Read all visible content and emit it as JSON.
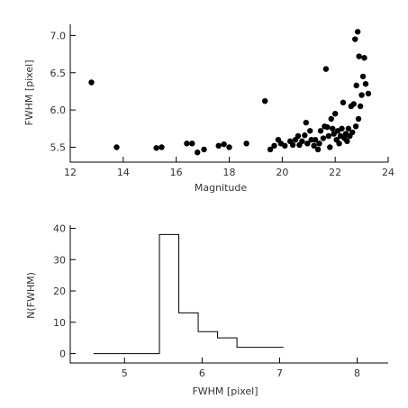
{
  "chart_data": [
    {
      "type": "scatter",
      "xlabel": "Magnitude",
      "ylabel": "FWHM [pixel]",
      "xlim": [
        12,
        24
      ],
      "ylim": [
        5.3,
        7.15
      ],
      "xticks": [
        "12",
        "14",
        "16",
        "18",
        "20",
        "22",
        "24"
      ],
      "yticks": [
        "5.5",
        "6.0",
        "6.5",
        "7.0"
      ],
      "grid": false,
      "points": [
        [
          12.8,
          6.37
        ],
        [
          13.75,
          5.5
        ],
        [
          15.25,
          5.49
        ],
        [
          15.45,
          5.5
        ],
        [
          16.4,
          5.55
        ],
        [
          16.6,
          5.55
        ],
        [
          16.8,
          5.43
        ],
        [
          17.05,
          5.47
        ],
        [
          17.6,
          5.52
        ],
        [
          17.8,
          5.54
        ],
        [
          18.0,
          5.5
        ],
        [
          18.65,
          5.55
        ],
        [
          19.35,
          6.12
        ],
        [
          19.55,
          5.47
        ],
        [
          19.7,
          5.52
        ],
        [
          19.85,
          5.6
        ],
        [
          19.95,
          5.55
        ],
        [
          20.1,
          5.52
        ],
        [
          20.3,
          5.58
        ],
        [
          20.4,
          5.53
        ],
        [
          20.5,
          5.6
        ],
        [
          20.6,
          5.65
        ],
        [
          20.65,
          5.53
        ],
        [
          20.75,
          5.58
        ],
        [
          20.85,
          5.66
        ],
        [
          20.9,
          5.83
        ],
        [
          20.95,
          5.55
        ],
        [
          21.05,
          5.72
        ],
        [
          21.1,
          5.6
        ],
        [
          21.2,
          5.52
        ],
        [
          21.25,
          5.6
        ],
        [
          21.35,
          5.47
        ],
        [
          21.4,
          5.55
        ],
        [
          21.45,
          5.72
        ],
        [
          21.55,
          5.62
        ],
        [
          21.6,
          5.78
        ],
        [
          21.65,
          6.55
        ],
        [
          21.7,
          5.77
        ],
        [
          21.75,
          5.65
        ],
        [
          21.8,
          5.5
        ],
        [
          21.85,
          5.88
        ],
        [
          21.9,
          5.75
        ],
        [
          21.95,
          5.68
        ],
        [
          22.0,
          5.95
        ],
        [
          22.05,
          5.6
        ],
        [
          22.1,
          5.72
        ],
        [
          22.15,
          5.55
        ],
        [
          22.2,
          5.65
        ],
        [
          22.25,
          5.75
        ],
        [
          22.3,
          6.1
        ],
        [
          22.35,
          5.62
        ],
        [
          22.4,
          5.68
        ],
        [
          22.45,
          5.58
        ],
        [
          22.5,
          5.75
        ],
        [
          22.55,
          5.65
        ],
        [
          22.6,
          6.05
        ],
        [
          22.65,
          5.7
        ],
        [
          22.7,
          6.08
        ],
        [
          22.75,
          6.95
        ],
        [
          22.78,
          5.78
        ],
        [
          22.8,
          6.33
        ],
        [
          22.85,
          7.05
        ],
        [
          22.88,
          5.88
        ],
        [
          22.9,
          6.72
        ],
        [
          22.95,
          6.05
        ],
        [
          23.0,
          6.2
        ],
        [
          23.05,
          6.45
        ],
        [
          23.1,
          6.7
        ],
        [
          23.15,
          6.35
        ],
        [
          23.25,
          6.22
        ]
      ]
    },
    {
      "type": "bar",
      "xlabel": "FWHM [pixel]",
      "ylabel": "N(FWHM)",
      "xlim": [
        4.3,
        8.4
      ],
      "ylim": [
        -3,
        41
      ],
      "xticks": [
        "5",
        "6",
        "7",
        "8"
      ],
      "yticks": [
        "0",
        "10",
        "20",
        "30",
        "40"
      ],
      "grid": false,
      "bin_edges": [
        4.6,
        5.45,
        5.7,
        5.95,
        6.2,
        6.45,
        7.05
      ],
      "values": [
        0,
        38,
        13,
        7,
        5,
        2
      ]
    }
  ]
}
